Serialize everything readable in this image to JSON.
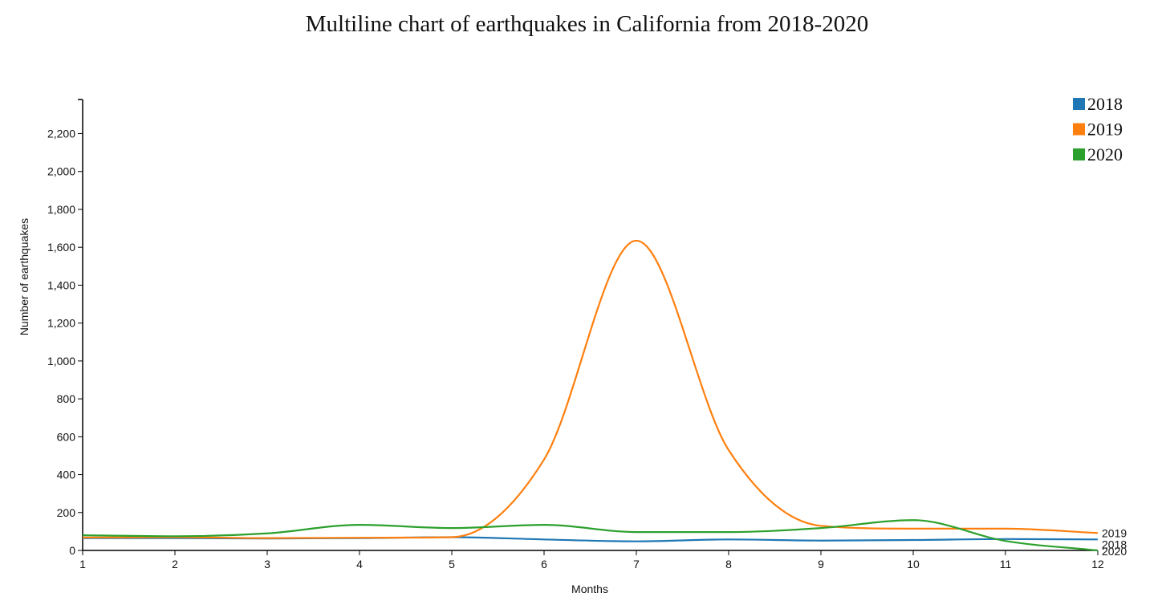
{
  "chart_data": {
    "type": "line",
    "title": "Multiline chart of earthquakes in California from 2018-2020",
    "xlabel": "Months",
    "ylabel": "Number of earthquakes",
    "x": [
      1,
      2,
      3,
      4,
      5,
      6,
      7,
      8,
      9,
      10,
      11,
      12
    ],
    "xlim": [
      1,
      12
    ],
    "ylim": [
      0,
      2380
    ],
    "yticks": [
      0,
      200,
      400,
      600,
      800,
      1000,
      1200,
      1400,
      1600,
      1800,
      2000,
      2200
    ],
    "ytick_labels": [
      "0",
      "200",
      "400",
      "600",
      "800",
      "1,000",
      "1,200",
      "1,400",
      "1,600",
      "1,800",
      "2,000",
      "2,200"
    ],
    "xticks": [
      1,
      2,
      3,
      4,
      5,
      6,
      7,
      8,
      9,
      10,
      11,
      12
    ],
    "xtick_labels": [
      "1",
      "2",
      "3",
      "4",
      "5",
      "6",
      "7",
      "8",
      "9",
      "10",
      "11",
      "12"
    ],
    "grid": false,
    "legend": "top-right",
    "series": [
      {
        "name": "2018",
        "color": "#1f77b4",
        "values": [
          65,
          65,
          63,
          65,
          70,
          58,
          48,
          58,
          52,
          55,
          60,
          58
        ]
      },
      {
        "name": "2019",
        "color": "#ff7f0e",
        "values": [
          68,
          70,
          65,
          67,
          70,
          480,
          1635,
          530,
          130,
          115,
          115,
          92
        ]
      },
      {
        "name": "2020",
        "color": "#2ca02c",
        "values": [
          80,
          75,
          90,
          135,
          118,
          135,
          97,
          97,
          118,
          160,
          50,
          0
        ]
      }
    ]
  }
}
